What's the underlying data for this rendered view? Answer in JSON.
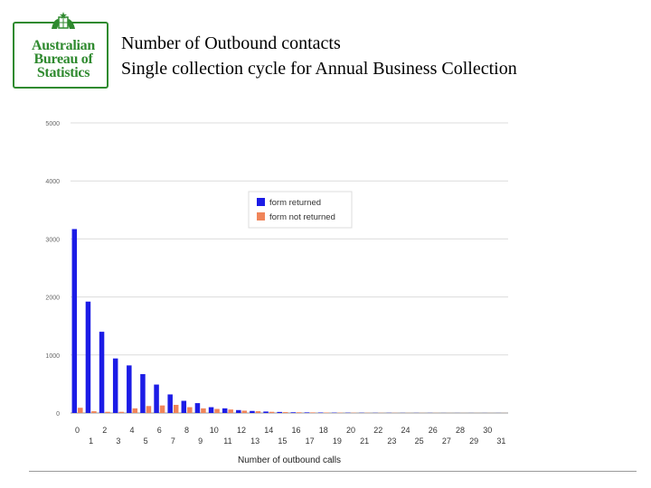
{
  "header": {
    "logo": {
      "line1": "Australian",
      "line2": "Bureau of",
      "line3": "Statistics"
    },
    "title_line1": "Number of Outbound contacts",
    "title_line2": "Single collection cycle for Annual Business Collection"
  },
  "colors": {
    "form_returned": "#1c1ce6",
    "form_not_returned": "#f0855a",
    "grid": "#dcdcdc",
    "logo_green": "#2f8a2f"
  },
  "chart_data": {
    "type": "bar",
    "xlabel": "Number of outbound calls",
    "ylabel": "",
    "ylim": [
      0,
      5000
    ],
    "yticks": [
      "0",
      "1000",
      "2000",
      "3000",
      "4000",
      "5000"
    ],
    "grid": true,
    "legend_position": "top-right",
    "categories": [
      "0",
      "1",
      "2",
      "3",
      "4",
      "5",
      "6",
      "7",
      "8",
      "9",
      "10",
      "11",
      "12",
      "13",
      "14",
      "15",
      "16",
      "17",
      "18",
      "19",
      "20",
      "21",
      "22",
      "23",
      "24",
      "25",
      "26",
      "27",
      "28",
      "29",
      "30",
      "31"
    ],
    "series": [
      {
        "name": "form returned",
        "color": "#1c1ce6",
        "values": [
          3170,
          1920,
          1400,
          940,
          820,
          670,
          490,
          320,
          210,
          170,
          100,
          80,
          50,
          35,
          25,
          18,
          12,
          10,
          8,
          6,
          5,
          4,
          3,
          3,
          2,
          2,
          2,
          1,
          1,
          1,
          1,
          1
        ]
      },
      {
        "name": "form not returned",
        "color": "#f0855a",
        "values": [
          90,
          30,
          20,
          20,
          80,
          120,
          130,
          140,
          100,
          80,
          70,
          60,
          40,
          30,
          20,
          15,
          12,
          10,
          8,
          6,
          5,
          4,
          3,
          3,
          2,
          2,
          2,
          1,
          1,
          1,
          1,
          1
        ]
      }
    ]
  }
}
